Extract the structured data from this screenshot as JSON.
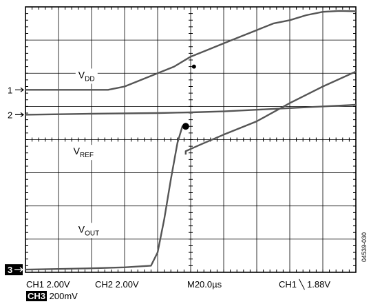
{
  "chart_data": {
    "type": "line",
    "title": "",
    "xlabel": "",
    "ylabel": "",
    "grid": true,
    "xlim": [
      0,
      10
    ],
    "ylim": [
      0,
      8
    ],
    "divisions": {
      "x": 10,
      "y": 8
    },
    "series": [
      {
        "name": "VDD",
        "label": "V",
        "sub": "DD",
        "channel_marker": "1",
        "points": [
          [
            0,
            5.5
          ],
          [
            2.5,
            5.5
          ],
          [
            3.0,
            5.6
          ],
          [
            3.5,
            5.8
          ],
          [
            4,
            6.0
          ],
          [
            4.5,
            6.2
          ],
          [
            5,
            6.5
          ],
          [
            5.5,
            6.7
          ],
          [
            6,
            6.9
          ],
          [
            6.5,
            7.1
          ],
          [
            7,
            7.3
          ],
          [
            7.5,
            7.5
          ],
          [
            8,
            7.6
          ],
          [
            8.5,
            7.75
          ],
          [
            9,
            7.85
          ],
          [
            9.5,
            7.88
          ],
          [
            10,
            7.87
          ]
        ]
      },
      {
        "name": "VREF",
        "label": "V",
        "sub": "REF",
        "channel_marker": "2",
        "points": [
          [
            0,
            4.75
          ],
          [
            2,
            4.78
          ],
          [
            4,
            4.8
          ],
          [
            5,
            4.82
          ],
          [
            6,
            4.85
          ],
          [
            7,
            4.9
          ],
          [
            8,
            4.95
          ],
          [
            9,
            5.0
          ],
          [
            10,
            5.05
          ]
        ]
      },
      {
        "name": "VREF-ramp",
        "label": "",
        "sub": "",
        "points": [
          [
            4.85,
            3.55
          ],
          [
            4.85,
            3.65
          ],
          [
            5.3,
            3.85
          ],
          [
            6,
            4.15
          ],
          [
            7,
            4.55
          ],
          [
            8,
            5.1
          ],
          [
            9,
            5.6
          ],
          [
            10,
            6.05
          ]
        ]
      },
      {
        "name": "VOUT",
        "label": "V",
        "sub": "OUT",
        "channel_marker": "3",
        "points": [
          [
            0,
            0.08
          ],
          [
            1,
            0.1
          ],
          [
            2,
            0.12
          ],
          [
            3,
            0.15
          ],
          [
            3.5,
            0.18
          ],
          [
            3.8,
            0.2
          ],
          [
            4,
            0.6
          ],
          [
            4.2,
            1.6
          ],
          [
            4.4,
            2.8
          ],
          [
            4.6,
            3.9
          ],
          [
            4.75,
            4.4
          ],
          [
            4.85,
            4.4
          ]
        ]
      }
    ],
    "trigger_marker": {
      "x": 5.1,
      "y": 6.2
    },
    "cursor_dot": {
      "x": 4.85,
      "y": 4.4
    }
  },
  "status": {
    "ch1": "CH1  2.00V",
    "ch2": "CH2  2.00V",
    "timebase": "M20.0µs",
    "trigger": "CH1  ╲ 1.88V",
    "ch3_badge": "CH3",
    "ch3": "200mV"
  },
  "figure_id": "04539-030"
}
